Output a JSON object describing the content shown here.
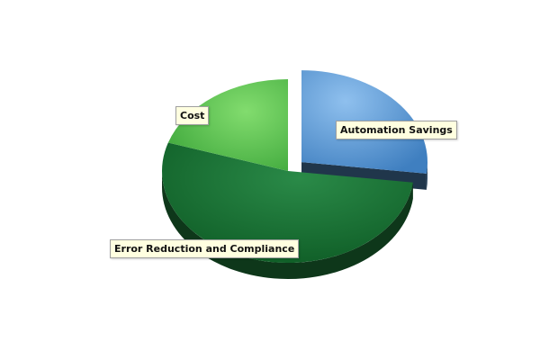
{
  "chart_data": {
    "type": "pie",
    "title": "",
    "slices": [
      {
        "label": "Automation Savings",
        "value": 27,
        "color": "#5b9bd5",
        "exploded": true
      },
      {
        "label": "Error Reduction and Compliance",
        "value": 53,
        "color": "#1e7a3a",
        "exploded": false
      },
      {
        "label": "Cost",
        "value": 20,
        "color": "#5fc85a",
        "exploded": false
      }
    ],
    "three_d": true,
    "legend": "none",
    "grid": false
  }
}
